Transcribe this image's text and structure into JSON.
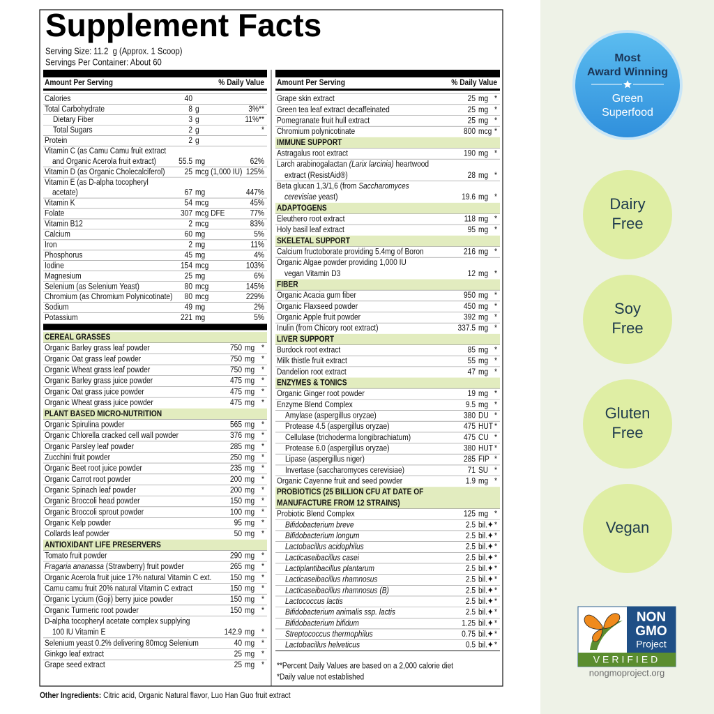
{
  "title": "Supplement Facts",
  "serving_size": "Serving Size: 11.2  g (Approx. 1 Scoop)",
  "servings_per_container": "Servings Per Container: About 60",
  "columns": [
    {
      "header_amount": "Amount Per Serving",
      "header_dv": "% Daily Value",
      "rows": [
        {
          "name": "Calories",
          "amount": "40"
        },
        {
          "name": "Total Carbohydrate",
          "amount": "8",
          "unit": "g",
          "dv": "3%**"
        },
        {
          "name": "Dietary Fiber",
          "indent": true,
          "amount": "3",
          "unit": "g",
          "dv": "11%**"
        },
        {
          "name": "Total Sugars",
          "indent": true,
          "amount": "2",
          "unit": "g",
          "dv": "*"
        },
        {
          "name": "Protein",
          "amount": "2",
          "unit": "g"
        },
        {
          "lines": [
            "Vitamin C (as Camu Camu fruit extract",
            "and Organic Acerola fruit extract)"
          ],
          "amount": "55.5",
          "unit": "mg",
          "dv": "62%"
        },
        {
          "name": "Vitamin D (as Organic Cholecalciferol)",
          "amount": "25",
          "unit": "mcg (1,000 IU)",
          "dv": "125%"
        },
        {
          "lines": [
            "Vitamin E (as D-alpha tocopheryl",
            "acetate)"
          ],
          "amount": "67",
          "unit": "mg",
          "dv": "447%"
        },
        {
          "name": "Vitamin K",
          "amount": "54",
          "unit": "mcg",
          "dv": "45%"
        },
        {
          "name": "Folate",
          "amount": "307",
          "unit": "mcg DFE",
          "dv": "77%"
        },
        {
          "name": "Vitamin B12",
          "amount": "2",
          "unit": "mcg",
          "dv": "83%"
        },
        {
          "name": "Calcium",
          "amount": "60",
          "unit": "mg",
          "dv": "5%"
        },
        {
          "name": "Iron",
          "amount": "2",
          "unit": "mg",
          "dv": "11%"
        },
        {
          "name": "Phosphorus",
          "amount": "45",
          "unit": "mg",
          "dv": "4%"
        },
        {
          "name": "Iodine",
          "amount": "154",
          "unit": "mcg",
          "dv": "103%"
        },
        {
          "name": "Magnesium",
          "amount": "25",
          "unit": "mg",
          "dv": "6%"
        },
        {
          "name": "Selenium (as Selenium Yeast)",
          "amount": "80",
          "unit": "mcg",
          "dv": "145%"
        },
        {
          "name": "Chromium (as Chromium Polynicotinate)",
          "amount": "80",
          "unit": "mcg",
          "dv": "229%"
        },
        {
          "name": "Sodium",
          "amount": "49",
          "unit": "mg",
          "dv": "2%"
        },
        {
          "name": "Potassium",
          "amount": "221",
          "unit": "mg",
          "dv": "5%"
        },
        {
          "section": "CEREAL GRASSES",
          "thick_rule_before": true
        },
        {
          "name": "Organic Barley grass leaf powder",
          "amount": "750",
          "unit": "mg",
          "dv": "*"
        },
        {
          "name": "Organic Oat grass leaf powder",
          "amount": "750",
          "unit": "mg",
          "dv": "*"
        },
        {
          "name": "Organic Wheat grass leaf powder",
          "amount": "750",
          "unit": "mg",
          "dv": "*"
        },
        {
          "name": "Organic Barley grass juice powder",
          "amount": "475",
          "unit": "mg",
          "dv": "*"
        },
        {
          "name": "Organic Oat grass juice powder",
          "amount": "475",
          "unit": "mg",
          "dv": "*"
        },
        {
          "name": "Organic Wheat grass juice powder",
          "amount": "475",
          "unit": "mg",
          "dv": "*"
        },
        {
          "section": "PLANT BASED MICRO-NUTRITION"
        },
        {
          "name": "Organic Spirulina powder",
          "amount": "565",
          "unit": "mg",
          "dv": "*"
        },
        {
          "name": "Organic Chlorella cracked cell wall powder",
          "amount": "376",
          "unit": "mg",
          "dv": "*"
        },
        {
          "name": "Organic Parsley leaf powder",
          "amount": "285",
          "unit": "mg",
          "dv": "*"
        },
        {
          "name": "Zucchini fruit powder",
          "amount": "250",
          "unit": "mg",
          "dv": "*"
        },
        {
          "name": "Organic Beet root juice powder",
          "amount": "235",
          "unit": "mg",
          "dv": "*"
        },
        {
          "name": "Organic Carrot root powder",
          "amount": "200",
          "unit": "mg",
          "dv": "*"
        },
        {
          "name": "Organic Spinach leaf powder",
          "amount": "200",
          "unit": "mg",
          "dv": "*"
        },
        {
          "name": "Organic Broccoli head powder",
          "amount": "150",
          "unit": "mg",
          "dv": "*"
        },
        {
          "name": "Organic Broccoli sprout powder",
          "amount": "100",
          "unit": "mg",
          "dv": "*"
        },
        {
          "name": "Organic Kelp powder",
          "amount": "95",
          "unit": "mg",
          "dv": "*"
        },
        {
          "name": "Collards leaf powder",
          "amount": "50",
          "unit": "mg",
          "dv": "*"
        },
        {
          "section": "ANTIOXIDANT LIFE PRESERVERS"
        },
        {
          "name": "Tomato fruit powder",
          "amount": "290",
          "unit": "mg",
          "dv": "*"
        },
        {
          "lines": [
            [
              {
                "text": "Fragaria ananassa",
                "italic": true
              },
              {
                "text": " (Strawberry) fruit powder"
              }
            ]
          ],
          "amount": "265",
          "unit": "mg",
          "dv": "*"
        },
        {
          "name": "Organic Acerola fruit juice 17% natural Vitamin C ext.",
          "amount": "150",
          "unit": "mg",
          "dv": "*"
        },
        {
          "name": "Camu camu fruit 20% natural Vitamin C extract",
          "amount": "150",
          "unit": "mg",
          "dv": "*"
        },
        {
          "name": "Organic Lycium (Goji) berry juice powder",
          "amount": "150",
          "unit": "mg",
          "dv": "*"
        },
        {
          "name": "Organic Turmeric root powder",
          "amount": "150",
          "unit": "mg",
          "dv": "*"
        },
        {
          "lines": [
            "D-alpha tocopheryl acetate complex supplying",
            "100 IU Vitamin E"
          ],
          "amount": "142.9",
          "unit": "mg",
          "dv": "*"
        },
        {
          "name": "Selenium yeast 0.2% delivering 80mcg Selenium",
          "amount": "40",
          "unit": "mg",
          "dv": "*"
        },
        {
          "name": "Ginkgo leaf extract",
          "amount": "25",
          "unit": "mg",
          "dv": "*"
        },
        {
          "name": "Grape seed extract",
          "amount": "25",
          "unit": "mg",
          "dv": "*"
        }
      ]
    },
    {
      "header_amount": "Amount Per Serving",
      "header_dv": "% Daily Value",
      "rows": [
        {
          "name": "Grape skin extract",
          "amount": "25",
          "unit": "mg",
          "dv": "*"
        },
        {
          "name": "Green tea leaf extract decaffeinated",
          "amount": "25",
          "unit": "mg",
          "dv": "*"
        },
        {
          "name": "Pomegranate fruit hull extract",
          "amount": "25",
          "unit": "mg",
          "dv": "*"
        },
        {
          "name": "Chromium polynicotinate",
          "amount": "800",
          "unit": "mcg",
          "dv": "*"
        },
        {
          "section": "IMMUNE SUPPORT"
        },
        {
          "name": "Astragalus root extract",
          "amount": "190",
          "unit": "mg",
          "dv": "*"
        },
        {
          "lines": [
            [
              {
                "text": "Larch arabinogalactan "
              },
              {
                "text": "(Larix larcinia)",
                "italic": true
              },
              {
                "text": " heartwood"
              }
            ],
            "extract (ResistAid®)"
          ],
          "amount": "28",
          "unit": "mg",
          "dv": "*"
        },
        {
          "lines": [
            [
              {
                "text": "Beta glucan 1,3/1,6 (from "
              },
              {
                "text": "Saccharomyces",
                "italic": true
              }
            ],
            [
              {
                "text": "cerevisiae",
                "italic": true
              },
              {
                "text": " yeast)"
              }
            ]
          ],
          "amount": "19.6",
          "unit": "mg",
          "dv": "*"
        },
        {
          "section": "ADAPTOGENS"
        },
        {
          "name": "Eleuthero root extract",
          "amount": "118",
          "unit": "mg",
          "dv": "*"
        },
        {
          "name": "Holy basil leaf extract",
          "amount": "95",
          "unit": "mg",
          "dv": "*"
        },
        {
          "section": "SKELETAL SUPPORT"
        },
        {
          "name": "Calcium fructoborate providing 5.4mg of Boron",
          "amount": "216",
          "unit": "mg",
          "dv": "*"
        },
        {
          "lines": [
            "Organic Algae powder providing 1,000 IU",
            "vegan Vitamin D3"
          ],
          "amount": "12",
          "unit": "mg",
          "dv": "*"
        },
        {
          "section": "FIBER"
        },
        {
          "name": "Organic Acacia gum fiber",
          "amount": "950",
          "unit": "mg",
          "dv": "*"
        },
        {
          "name": "Organic Flaxseed powder",
          "amount": "450",
          "unit": "mg",
          "dv": "*"
        },
        {
          "name": "Organic Apple fruit powder",
          "amount": "392",
          "unit": "mg",
          "dv": "*"
        },
        {
          "name": "Inulin (from Chicory root extract)",
          "amount": "337.5",
          "unit": "mg",
          "dv": "*"
        },
        {
          "section": "LIVER SUPPORT"
        },
        {
          "name": "Burdock root extract",
          "amount": "85",
          "unit": "mg",
          "dv": "*"
        },
        {
          "name": "Milk thistle fruit extract",
          "amount": "55",
          "unit": "mg",
          "dv": "*"
        },
        {
          "name": "Dandelion root extract",
          "amount": "47",
          "unit": "mg",
          "dv": "*"
        },
        {
          "section": "ENZYMES & TONICS"
        },
        {
          "name": "Organic Ginger root powder",
          "amount": "19",
          "unit": "mg",
          "dv": "*"
        },
        {
          "name": "Enzyme Blend Complex",
          "amount": "9.5",
          "unit": "mg",
          "dv": "*"
        },
        {
          "name": "Amylase (aspergillus oryzae)",
          "indent": true,
          "amount": "380",
          "unit": "DU",
          "dv": "*"
        },
        {
          "name": "Protease 4.5 (aspergillus oryzae)",
          "indent": true,
          "amount": "475",
          "unit": "HUT",
          "dv": "*"
        },
        {
          "name": "Cellulase (trichoderma longibrachiatum)",
          "indent": true,
          "amount": "475",
          "unit": "CU",
          "dv": "*"
        },
        {
          "name": "Protease 6.0 (aspergillus oryzae)",
          "indent": true,
          "amount": "380",
          "unit": "HUT",
          "dv": "*"
        },
        {
          "name": "Lipase (aspergillus niger)",
          "indent": true,
          "amount": "285",
          "unit": "FIP",
          "dv": "*"
        },
        {
          "name": "Invertase (saccharomyces cerevisiae)",
          "indent": true,
          "amount": "71",
          "unit": "SU",
          "dv": "*"
        },
        {
          "name": "Organic Cayenne fruit and seed powder",
          "amount": "1.9",
          "unit": "mg",
          "dv": "*"
        },
        {
          "section": [
            "PROBIOTICS (25 BILLION CFU AT DATE OF",
            "MANUFACTURE FROM 12 STRAINS)"
          ]
        },
        {
          "name": "Probiotic Blend Complex",
          "amount": "125",
          "unit": "mg",
          "dv": "*"
        },
        {
          "name": "Bifidobacterium breve",
          "indent": true,
          "italic": true,
          "amount": "2.5",
          "unit": "bil.✦",
          "dv": "*"
        },
        {
          "name": "Bifidobacterium longum",
          "indent": true,
          "italic": true,
          "amount": "2.5",
          "unit": "bil.✦",
          "dv": "*"
        },
        {
          "name": "Lactobacillus acidophilus",
          "indent": true,
          "italic": true,
          "amount": "2.5",
          "unit": "bil.✦",
          "dv": "*"
        },
        {
          "name": "Lacticaseibacillus casei",
          "indent": true,
          "italic": true,
          "amount": "2.5",
          "unit": "bil.✦",
          "dv": "*"
        },
        {
          "name": "Lactiplantibacillus plantarum",
          "indent": true,
          "italic": true,
          "amount": "2.5",
          "unit": "bil.✦",
          "dv": "*"
        },
        {
          "name": "Lacticaseibacillus rhamnosus",
          "indent": true,
          "italic": true,
          "amount": "2.5",
          "unit": "bil.✦",
          "dv": "*"
        },
        {
          "name": "Lacticaseibacillus rhamnosus (B)",
          "indent": true,
          "italic": true,
          "amount": "2.5",
          "unit": "bil.✦",
          "dv": "*"
        },
        {
          "name": "Lactococcus lactis",
          "indent": true,
          "italic": true,
          "amount": "2.5",
          "unit": "bil.✦",
          "dv": "*"
        },
        {
          "name": "Bifidobacterium animalis ssp. lactis",
          "indent": true,
          "italic": true,
          "amount": "2.5",
          "unit": "bil.✦",
          "dv": "*"
        },
        {
          "name": "Bifidobacterium bifidum",
          "indent": true,
          "italic": true,
          "amount": "1.25",
          "unit": "bil.✦",
          "dv": "*"
        },
        {
          "name": "Streptococcus thermophilus",
          "indent": true,
          "italic": true,
          "amount": "0.75",
          "unit": "bil.✦",
          "dv": "*"
        },
        {
          "name": "Lactobacillus helveticus",
          "indent": true,
          "italic": true,
          "amount": "0.5",
          "unit": "bil.✦",
          "dv": "*"
        }
      ]
    }
  ],
  "footnotes": [
    "**Percent Daily Values are based on a 2,000 calorie diet",
    "*Daily value not established"
  ],
  "other_ingredients_label": "Other Ingredients:",
  "other_ingredients": " Citric acid, Organic Natural flavor, Luo Han Guo fruit extract",
  "award_badge": {
    "top": [
      "Most",
      "Award Winning"
    ],
    "bottom": [
      "Green",
      "Superfood"
    ]
  },
  "free_badges": [
    [
      "Dairy",
      "Free"
    ],
    [
      "Soy",
      "Free"
    ],
    [
      "Gluten",
      "Free"
    ],
    [
      "Vegan"
    ]
  ],
  "non_gmo": {
    "line1": "NON",
    "line2": "GMO",
    "line3": "Project",
    "verified": "VERIFIED",
    "url": "nongmoproject.org"
  }
}
